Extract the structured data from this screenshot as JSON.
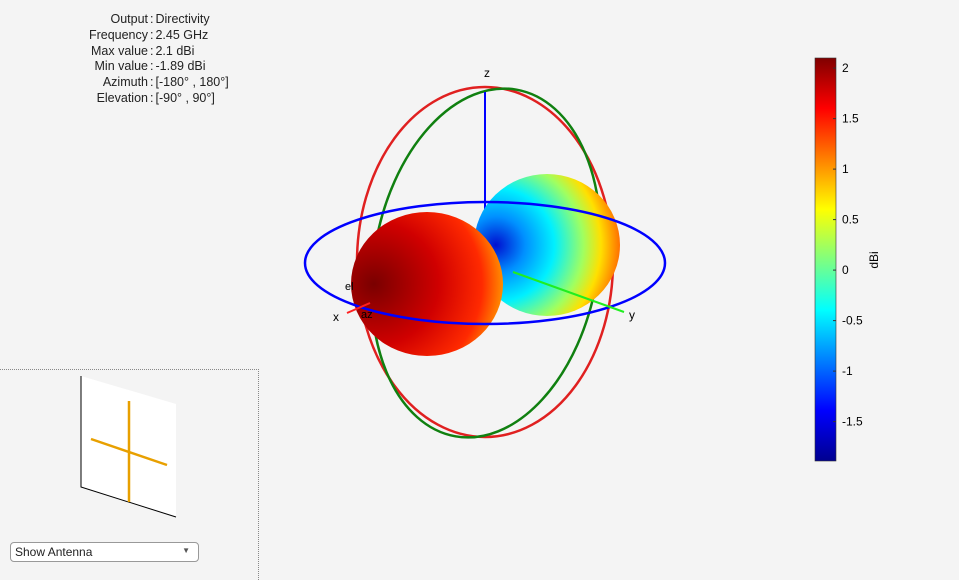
{
  "info": [
    {
      "key": "Output",
      "value": "Directivity"
    },
    {
      "key": "Frequency",
      "value": "2.45 GHz"
    },
    {
      "key": "Max value",
      "value": "2.1 dBi"
    },
    {
      "key": "Min value",
      "value": "-1.89 dBi"
    },
    {
      "key": "Azimuth",
      "value": "[-180° , 180°]"
    },
    {
      "key": "Elevation",
      "value": "[-90° , 90°]"
    }
  ],
  "axes": {
    "x": "x",
    "y": "y",
    "z": "z",
    "el": "el",
    "az": "az"
  },
  "chart_data": {
    "type": "3d-radiation-pattern",
    "colormap": "jet",
    "colorbar": {
      "label": "dBi",
      "min": -1.89,
      "max": 2.1,
      "ticks": [
        2,
        1.5,
        1,
        0.5,
        0,
        -0.5,
        -1,
        -1.5
      ],
      "tick_labels": [
        "2",
        "1.5",
        "1",
        "0.5",
        "0",
        "-0.5",
        "-1",
        "-1.5"
      ]
    },
    "colors": {
      "azimuth_ring": "#0000ff",
      "xz_ring": "#e02020",
      "yz_ring": "#108010"
    }
  },
  "controls": {
    "dropdown_value": "Show Antenna"
  }
}
